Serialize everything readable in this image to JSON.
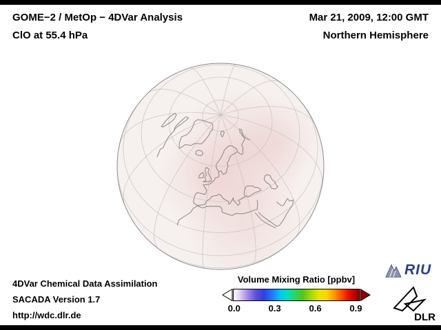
{
  "header": {
    "title_line1": "GOME−2 / MetOp − 4DVar Analysis",
    "subtitle": "ClO at 55.4 hPa",
    "datetime": "Mar 21, 2009, 12:00 GMT",
    "region": "Northern Hemisphere"
  },
  "footer": {
    "line1": "4DVar Chemical Data Assimilation",
    "line2": "SACADA Version 1.7",
    "url": "http://wdc.dlr.de"
  },
  "colorbar": {
    "title": "Volume Mixing Ratio [ppbv]",
    "tick_labels": [
      "0.0",
      "0.3",
      "0.6",
      "0.9"
    ],
    "tick_positions_pct": [
      1,
      33,
      65,
      97
    ],
    "gradient_stops": [
      "#ffffff 0%",
      "#ddd0f5 5%",
      "#9b7fe8 12%",
      "#5b4fd6 18%",
      "#2f3fe0 24%",
      "#1f7bff 31%",
      "#00c3f5 37%",
      "#00e0b8 43%",
      "#2ed45f 49%",
      "#53c41d 55%",
      "#a8d800 62%",
      "#e8e400 68%",
      "#ffd400 74%",
      "#ff9a00 80%",
      "#ff5200 86%",
      "#ee1500 91%",
      "#c00000 96%",
      "#8c0000 100%"
    ],
    "left_arrow_color": "#ffffff",
    "right_arrow_color": "#8c0000"
  },
  "globe": {
    "colors": {
      "disk": "#f6f0ee",
      "rim": "#8c8c8c",
      "grid": "#c9c2c0",
      "coast": "#8f8585",
      "blob": "#dda0a0"
    }
  },
  "logos": {
    "riu": "RIU",
    "dlr": "DLR"
  }
}
